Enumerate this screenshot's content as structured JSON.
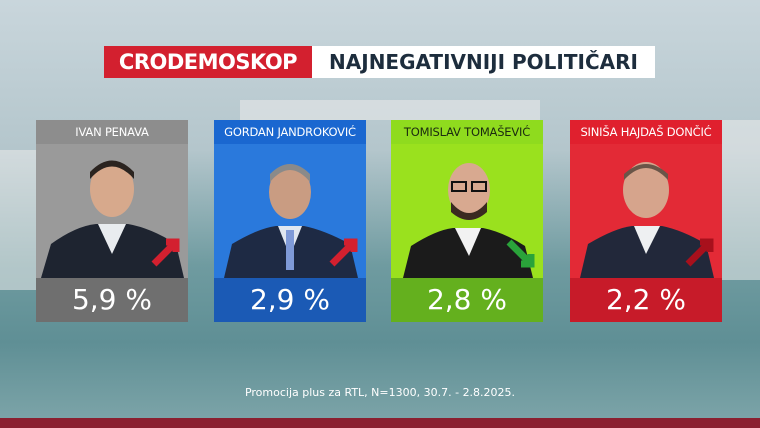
{
  "header": {
    "brand": "CRODEMOSKOP",
    "title": "NAJNEGATIVNIJI POLITIČARI"
  },
  "cards": [
    {
      "name": "IVAN PENAVA",
      "value": "5,9 %"
    },
    {
      "name": "GORDAN JANDROKOVIĆ",
      "value": "2,9 %"
    },
    {
      "name": "TOMISLAV TOMAŠEVIĆ",
      "value": "2,8 %"
    },
    {
      "name": "SINIŠA HAJDAŠ DONČIĆ",
      "value": "2,2 %"
    }
  ],
  "footer": "Promocija plus za RTL, N=1300, 30.7. - 2.8.2025."
}
